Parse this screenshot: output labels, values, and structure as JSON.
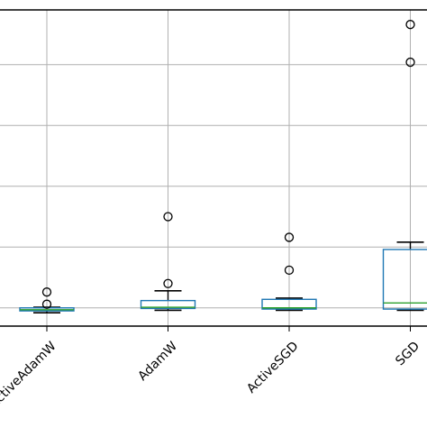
{
  "chart_data": {
    "type": "box",
    "title": "",
    "xlabel": "",
    "ylabel": "",
    "categories": [
      "ActiveAdamW",
      "AdamW",
      "ActiveSGD",
      "SGD"
    ],
    "ylim": [
      -0.15,
      2.45
    ],
    "grid": true,
    "boxes": [
      {
        "category": "ActiveAdamW",
        "whisker_low": -0.04,
        "q1": -0.025,
        "median": -0.015,
        "q3": 0.0,
        "whisker_high": 0.005,
        "outliers": [
          0.03,
          0.13
        ]
      },
      {
        "category": "AdamW",
        "whisker_low": -0.02,
        "q1": -0.005,
        "median": 0.005,
        "q3": 0.06,
        "whisker_high": 0.14,
        "outliers": [
          0.2,
          0.75
        ]
      },
      {
        "category": "ActiveSGD",
        "whisker_low": -0.02,
        "q1": -0.01,
        "median": 0.0,
        "q3": 0.07,
        "whisker_high": 0.08,
        "outliers": [
          0.31,
          0.58
        ]
      },
      {
        "category": "SGD",
        "whisker_low": -0.02,
        "q1": -0.01,
        "median": 0.04,
        "q3": 0.48,
        "whisker_high": 0.54,
        "outliers": [
          2.02,
          2.33
        ]
      }
    ],
    "colors": {
      "box": "#1f77b4",
      "median": "#2ca02c",
      "whisker": "#000000",
      "grid": "#b0b0b0",
      "outlier": "#000000",
      "axes": "#000000"
    }
  }
}
